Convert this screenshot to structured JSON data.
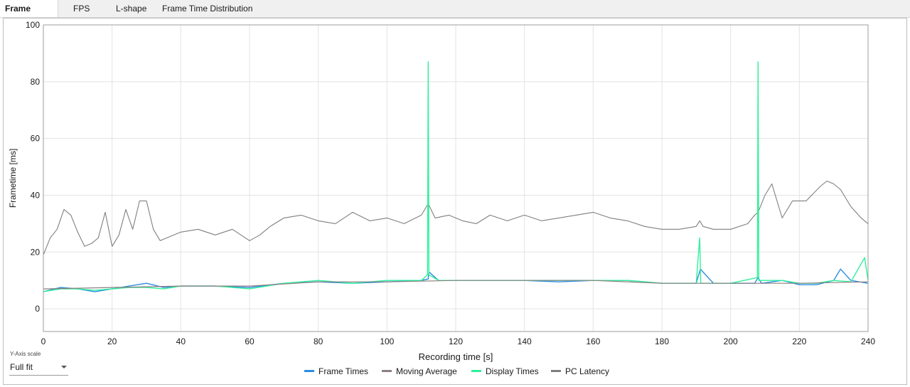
{
  "tabs": [
    {
      "label": "Frame Times",
      "active": true
    },
    {
      "label": "FPS",
      "active": false
    },
    {
      "label": "L-shape",
      "active": false
    },
    {
      "label": "Frame Time Distribution",
      "active": false
    }
  ],
  "y_axis_scale": {
    "label": "Y-Axis scale",
    "selected": "Full fit"
  },
  "colors": {
    "frame_times": "#2b8ce0",
    "moving_average": "#8c7f7f",
    "display_times": "#2ef09b",
    "pc_latency": "#7f7f7f",
    "grid": "#e3e3e3",
    "axis": "#333333"
  },
  "chart_data": {
    "type": "line",
    "title": "",
    "xlabel": "Recording time [s]",
    "ylabel": "Frametime [ms]",
    "xlim": [
      0,
      240
    ],
    "ylim": [
      -8,
      100
    ],
    "xticks": [
      0,
      20,
      40,
      60,
      80,
      100,
      120,
      140,
      160,
      180,
      200,
      220,
      240
    ],
    "yticks": [
      0,
      20,
      40,
      60,
      80,
      100
    ],
    "grid": true,
    "legend_position": "bottom-center",
    "series": [
      {
        "name": "Frame Times",
        "x": [
          0,
          5,
          10,
          15,
          20,
          25,
          30,
          35,
          40,
          50,
          60,
          70,
          80,
          90,
          100,
          110,
          112,
          112.2,
          115,
          120,
          130,
          140,
          150,
          160,
          170,
          180,
          190,
          191.2,
          195,
          200,
          207,
          208,
          209,
          215,
          220,
          225,
          230,
          232,
          235,
          240
        ],
        "y": [
          6,
          7.5,
          7,
          6,
          7,
          8,
          9,
          7.5,
          8,
          8,
          7.5,
          9,
          9.5,
          9,
          9.5,
          10,
          10.5,
          13,
          10,
          10,
          10,
          10,
          9.5,
          10,
          10,
          9,
          9,
          14,
          9,
          9,
          9,
          11,
          9,
          10,
          8.5,
          8.5,
          10,
          14,
          10,
          9
        ]
      },
      {
        "name": "Moving Average",
        "x": [
          0,
          20,
          40,
          60,
          80,
          100,
          120,
          140,
          160,
          180,
          200,
          220,
          240
        ],
        "y": [
          7,
          7.5,
          8,
          8,
          9.5,
          9.5,
          10,
          10,
          10,
          9,
          9,
          9,
          9.5
        ]
      },
      {
        "name": "Display Times",
        "x": [
          0,
          5,
          10,
          15,
          20,
          25,
          30,
          35,
          40,
          50,
          60,
          70,
          80,
          90,
          100,
          110,
          111.8,
          112,
          112.2,
          115,
          120,
          130,
          140,
          150,
          160,
          170,
          180,
          190,
          191,
          191.3,
          195,
          200,
          207.8,
          208,
          208.2,
          215,
          220,
          225,
          230,
          235,
          239,
          240
        ],
        "y": [
          6,
          7,
          7,
          6.5,
          7,
          7.5,
          7.5,
          7,
          8,
          8,
          7,
          9,
          10,
          9,
          10,
          10,
          12,
          87,
          12,
          10,
          10,
          10,
          10,
          10,
          10,
          10,
          9,
          9,
          25,
          9,
          9,
          9,
          11,
          87,
          10,
          10,
          9,
          9,
          10,
          9.5,
          18,
          10
        ]
      },
      {
        "name": "PC Latency",
        "x": [
          0,
          2,
          4,
          6,
          8,
          10,
          12,
          14,
          16,
          18,
          20,
          22,
          24,
          26,
          28,
          30,
          32,
          34,
          36,
          40,
          45,
          50,
          55,
          60,
          63,
          66,
          70,
          75,
          80,
          85,
          90,
          95,
          100,
          105,
          110,
          112,
          114,
          118,
          122,
          126,
          130,
          135,
          140,
          145,
          150,
          155,
          160,
          165,
          170,
          175,
          180,
          185,
          190,
          191,
          192,
          195,
          200,
          205,
          207,
          208,
          210,
          212,
          215,
          218,
          222,
          226,
          228,
          230,
          232,
          235,
          238,
          240
        ],
        "y": [
          19,
          25,
          28,
          35,
          33,
          27,
          22,
          23,
          25,
          34,
          22,
          26,
          35,
          28,
          38,
          38,
          28,
          24,
          25,
          27,
          28,
          26,
          28,
          24,
          26,
          29,
          32,
          33,
          31,
          30,
          34,
          31,
          32,
          30,
          33,
          37,
          32,
          33,
          31,
          30,
          33,
          31,
          33,
          31,
          32,
          33,
          34,
          32,
          31,
          29,
          28,
          28,
          29,
          31,
          29,
          28,
          28,
          30,
          33,
          34,
          40,
          44,
          32,
          38,
          38,
          43,
          45,
          44,
          42,
          36,
          32,
          30
        ]
      }
    ]
  }
}
